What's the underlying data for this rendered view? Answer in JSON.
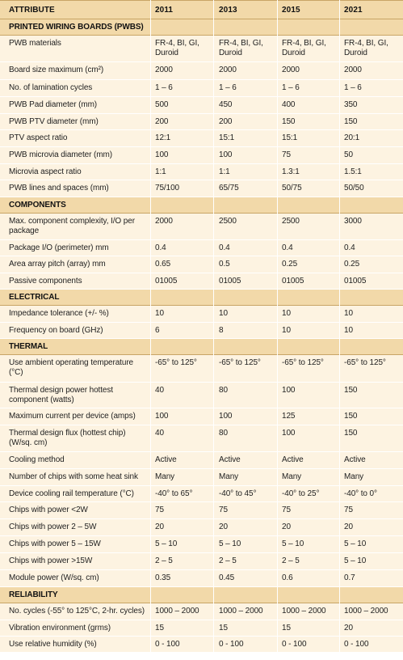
{
  "header": {
    "attribute": "ATTRIBUTE",
    "years": [
      "2011",
      "2013",
      "2015",
      "2021"
    ]
  },
  "sections": [
    {
      "title": "PRINTED WIRING BOARDS (PWBS)",
      "rows": [
        {
          "label": "PWB materials",
          "values": [
            "FR-4, BI, GI, Duroid",
            "FR-4, BI, GI, Duroid",
            "FR-4, BI, GI, Duroid",
            "FR-4, BI, GI, Duroid"
          ]
        },
        {
          "label": "Board size maximum (cm²)",
          "values": [
            "2000",
            "2000",
            "2000",
            "2000"
          ]
        },
        {
          "label": "No. of lamination cycles",
          "values": [
            "1 – 6",
            "1 – 6",
            "1 – 6",
            "1 – 6"
          ]
        },
        {
          "label": "PWB Pad diameter (mm)",
          "values": [
            "500",
            "450",
            "400",
            "350"
          ]
        },
        {
          "label": "PWB PTV diameter (mm)",
          "values": [
            "200",
            "200",
            "150",
            "150"
          ]
        },
        {
          "label": "PTV aspect ratio",
          "values": [
            "12:1",
            "15:1",
            "15:1",
            "20:1"
          ]
        },
        {
          "label": "PWB microvia diameter (mm)",
          "values": [
            "100",
            "100",
            "75",
            "50"
          ]
        },
        {
          "label": "Microvia aspect ratio",
          "values": [
            "1:1",
            "1:1",
            "1.3:1",
            "1.5:1"
          ]
        },
        {
          "label": "PWB lines and spaces (mm)",
          "values": [
            "75/100",
            "65/75",
            "50/75",
            "50/50"
          ]
        }
      ]
    },
    {
      "title": "COMPONENTS",
      "rows": [
        {
          "label": "Max. component complexity, I/O per package",
          "values": [
            "2000",
            "2500",
            "2500",
            "3000"
          ]
        },
        {
          "label": "Package I/O (perimeter) mm",
          "values": [
            "0.4",
            "0.4",
            "0.4",
            "0.4"
          ]
        },
        {
          "label": "Area array pitch (array) mm",
          "values": [
            "0.65",
            "0.5",
            "0.25",
            "0.25"
          ]
        },
        {
          "label": "Passive components",
          "values": [
            "01005",
            "01005",
            "01005",
            "01005"
          ]
        }
      ]
    },
    {
      "title": "ELECTRICAL",
      "rows": [
        {
          "label": "Impedance tolerance (+/- %)",
          "values": [
            "10",
            "10",
            "10",
            "10"
          ]
        },
        {
          "label": "Frequency on board (GHz)",
          "values": [
            "6",
            "8",
            "10",
            "10"
          ]
        }
      ]
    },
    {
      "title": "THERMAL",
      "rows": [
        {
          "label": "Use ambient operating temperature (°C)",
          "values": [
            "-65° to 125°",
            "-65° to 125°",
            "-65° to 125°",
            "-65° to 125°"
          ]
        },
        {
          "label": "Thermal design power hottest component (watts)",
          "values": [
            "40",
            "80",
            "100",
            "150"
          ]
        },
        {
          "label": "Maximum current per device (amps)",
          "values": [
            "100",
            "100",
            "125",
            "150"
          ]
        },
        {
          "label": "Thermal design flux (hottest chip) (W/sq. cm)",
          "values": [
            "40",
            "80",
            "100",
            "150"
          ]
        },
        {
          "label": "Cooling method",
          "values": [
            "Active",
            "Active",
            "Active",
            "Active"
          ]
        },
        {
          "label": "Number of chips with some heat sink",
          "values": [
            "Many",
            "Many",
            "Many",
            "Many"
          ]
        },
        {
          "label": "Device cooling rail temperature (°C)",
          "values": [
            "-40° to 65°",
            "-40° to 45°",
            "-40° to 25°",
            "-40° to 0°"
          ]
        },
        {
          "label": "Chips with power <2W",
          "values": [
            "75",
            "75",
            "75",
            "75"
          ]
        },
        {
          "label": "Chips with power 2 – 5W",
          "values": [
            "20",
            "20",
            "20",
            "20"
          ]
        },
        {
          "label": "Chips with power 5 – 15W",
          "values": [
            "5 – 10",
            "5 – 10",
            "5 – 10",
            "5 – 10"
          ]
        },
        {
          "label": "Chips with power >15W",
          "values": [
            "2 – 5",
            "2 – 5",
            "2 – 5",
            "5 – 10"
          ]
        },
        {
          "label": "Module power (W/sq. cm)",
          "values": [
            "0.35",
            "0.45",
            "0.6",
            "0.7"
          ]
        }
      ]
    },
    {
      "title": "RELIABILITY",
      "rows": [
        {
          "label": "No. cycles (-55° to 125°C, 2-hr. cycles)",
          "values": [
            "1000 – 2000",
            "1000 – 2000",
            "1000 – 2000",
            "1000 – 2000"
          ]
        },
        {
          "label": "Vibration environment (grms)",
          "values": [
            "15",
            "15",
            "15",
            "20"
          ]
        },
        {
          "label": "Use relative humidity (%)",
          "values": [
            "0 - 100",
            "0 - 100",
            "0 - 100",
            "0 - 100"
          ]
        }
      ]
    }
  ]
}
